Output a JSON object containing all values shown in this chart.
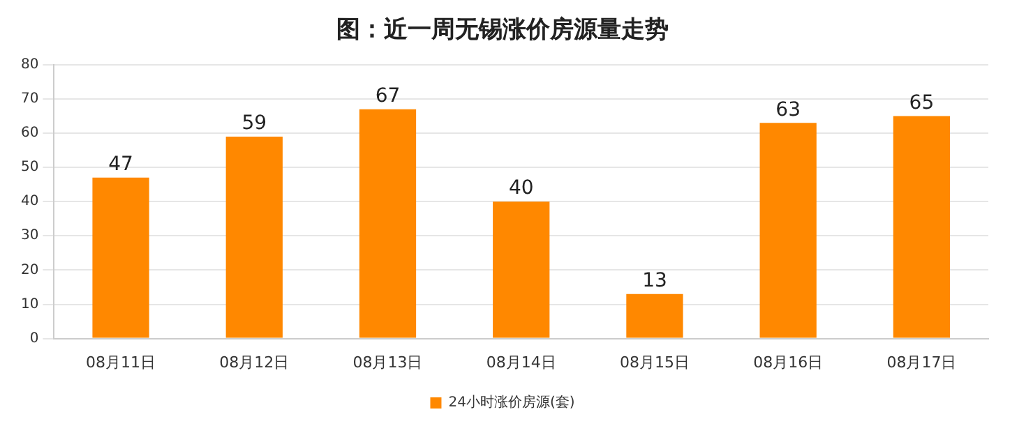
{
  "chart_data": {
    "type": "bar",
    "title": "图：近一周无锡涨价房源量走势",
    "categories": [
      "08月11日",
      "08月12日",
      "08月13日",
      "08月14日",
      "08月15日",
      "08月16日",
      "08月17日"
    ],
    "series": [
      {
        "name": "24小时涨价房源(套)",
        "color": "#ff8800",
        "values": [
          47,
          59,
          67,
          40,
          13,
          63,
          65
        ]
      }
    ],
    "ylim": [
      0,
      80
    ],
    "yticks": [
      0,
      10,
      20,
      30,
      40,
      50,
      60,
      70,
      80
    ],
    "grid": "y",
    "legend": "bottom",
    "data_labels": true
  }
}
